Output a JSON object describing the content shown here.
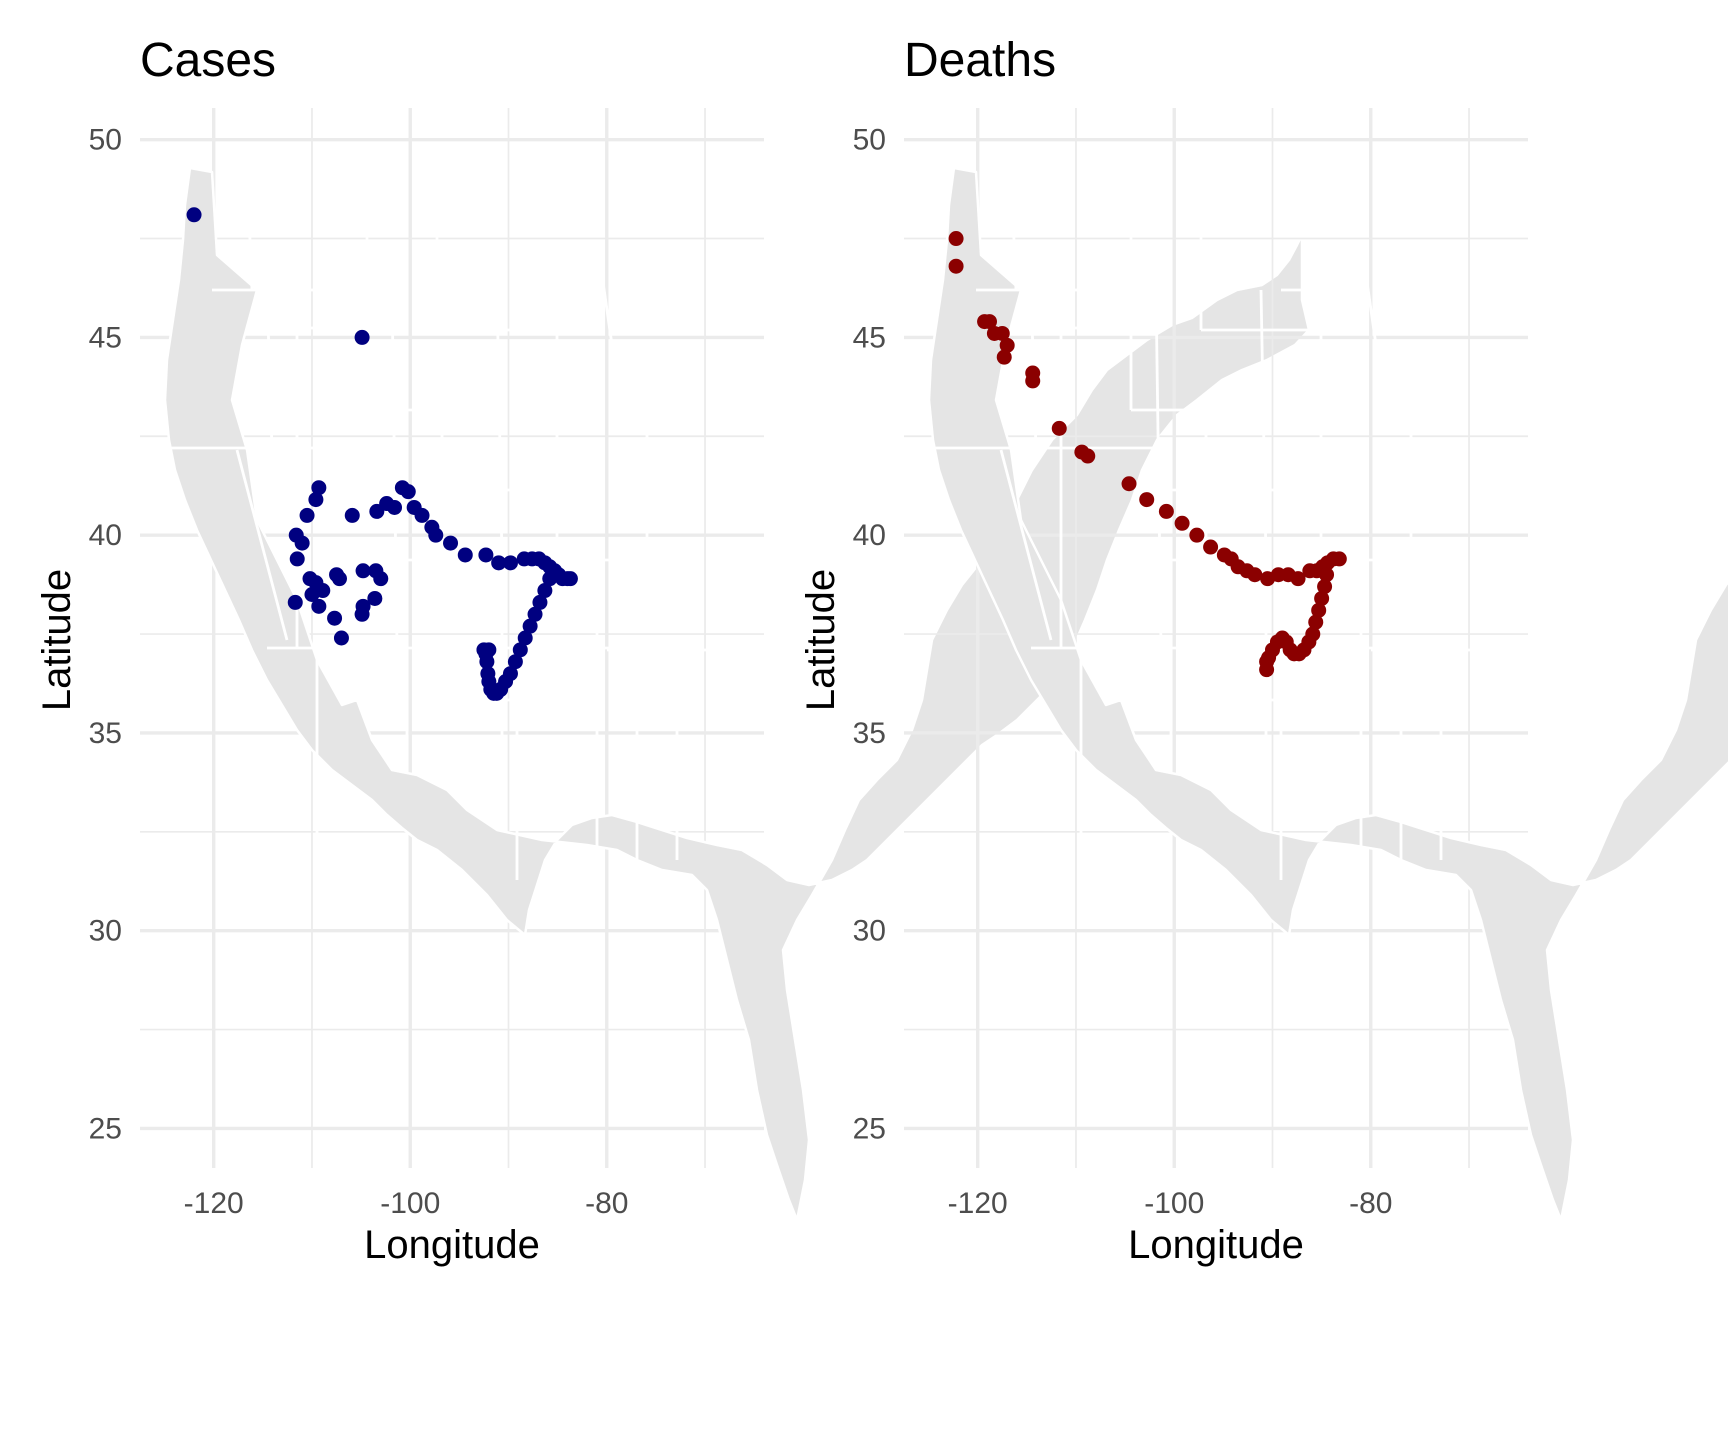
{
  "chart_data": [
    {
      "type": "scatter",
      "title": "Cases",
      "xlabel": "Longitude",
      "ylabel": "Latitude",
      "xlim": [
        -127.5,
        -64
      ],
      "ylim": [
        24,
        50.8
      ],
      "x_ticks": [
        -120,
        -100,
        -80
      ],
      "x_tick_labels": [
        "-120",
        "-100",
        "-80"
      ],
      "y_ticks": [
        25,
        30,
        35,
        40,
        45,
        50
      ],
      "y_tick_labels": [
        "25",
        "30",
        "35",
        "40",
        "45",
        "50"
      ],
      "grid": true,
      "background_map": "contiguous United States state outlines",
      "point_color": "#000080",
      "points": [
        {
          "x": -122.0,
          "y": 48.1
        },
        {
          "x": -104.9,
          "y": 45.0
        },
        {
          "x": -109.3,
          "y": 41.2
        },
        {
          "x": -109.6,
          "y": 40.9
        },
        {
          "x": -110.5,
          "y": 40.5
        },
        {
          "x": -111.6,
          "y": 40.0
        },
        {
          "x": -111.0,
          "y": 39.8
        },
        {
          "x": -111.5,
          "y": 39.4
        },
        {
          "x": -110.2,
          "y": 38.9
        },
        {
          "x": -109.6,
          "y": 38.8
        },
        {
          "x": -108.9,
          "y": 38.6
        },
        {
          "x": -110.0,
          "y": 38.5
        },
        {
          "x": -109.3,
          "y": 38.2
        },
        {
          "x": -111.7,
          "y": 38.3
        },
        {
          "x": -107.5,
          "y": 39.0
        },
        {
          "x": -107.2,
          "y": 38.9
        },
        {
          "x": -107.7,
          "y": 37.9
        },
        {
          "x": -107.0,
          "y": 37.4
        },
        {
          "x": -104.8,
          "y": 39.1
        },
        {
          "x": -104.8,
          "y": 38.2
        },
        {
          "x": -104.9,
          "y": 38.0
        },
        {
          "x": -103.5,
          "y": 39.1
        },
        {
          "x": -103.0,
          "y": 38.9
        },
        {
          "x": -103.6,
          "y": 38.4
        },
        {
          "x": -105.9,
          "y": 40.5
        },
        {
          "x": -103.4,
          "y": 40.6
        },
        {
          "x": -102.4,
          "y": 40.8
        },
        {
          "x": -101.6,
          "y": 40.7
        },
        {
          "x": -100.8,
          "y": 41.2
        },
        {
          "x": -100.2,
          "y": 41.1
        },
        {
          "x": -99.6,
          "y": 40.7
        },
        {
          "x": -98.8,
          "y": 40.5
        },
        {
          "x": -97.8,
          "y": 40.2
        },
        {
          "x": -97.4,
          "y": 40.0
        },
        {
          "x": -95.9,
          "y": 39.8
        },
        {
          "x": -94.4,
          "y": 39.5
        },
        {
          "x": -92.3,
          "y": 39.5
        },
        {
          "x": -91.0,
          "y": 39.3
        },
        {
          "x": -89.8,
          "y": 39.3
        },
        {
          "x": -88.4,
          "y": 39.4
        },
        {
          "x": -87.6,
          "y": 39.4
        },
        {
          "x": -86.9,
          "y": 39.4
        },
        {
          "x": -86.3,
          "y": 39.3
        },
        {
          "x": -85.8,
          "y": 39.2
        },
        {
          "x": -85.3,
          "y": 39.1
        },
        {
          "x": -84.9,
          "y": 39.0
        },
        {
          "x": -84.5,
          "y": 38.9
        },
        {
          "x": -84.0,
          "y": 38.9
        },
        {
          "x": -83.7,
          "y": 38.9
        },
        {
          "x": -85.8,
          "y": 38.9
        },
        {
          "x": -86.3,
          "y": 38.6
        },
        {
          "x": -86.8,
          "y": 38.3
        },
        {
          "x": -87.3,
          "y": 38.0
        },
        {
          "x": -87.8,
          "y": 37.7
        },
        {
          "x": -88.3,
          "y": 37.4
        },
        {
          "x": -88.8,
          "y": 37.1
        },
        {
          "x": -89.3,
          "y": 36.8
        },
        {
          "x": -89.8,
          "y": 36.5
        },
        {
          "x": -90.3,
          "y": 36.3
        },
        {
          "x": -90.8,
          "y": 36.1
        },
        {
          "x": -91.2,
          "y": 36.0
        },
        {
          "x": -91.5,
          "y": 36.0
        },
        {
          "x": -91.8,
          "y": 36.1
        },
        {
          "x": -92.0,
          "y": 36.3
        },
        {
          "x": -92.1,
          "y": 36.5
        },
        {
          "x": -92.2,
          "y": 36.8
        },
        {
          "x": -92.3,
          "y": 37.0
        },
        {
          "x": -92.5,
          "y": 37.1
        },
        {
          "x": -92.0,
          "y": 37.1
        }
      ]
    },
    {
      "type": "scatter",
      "title": "Deaths",
      "xlabel": "Longitude",
      "ylabel": "Latitude",
      "xlim": [
        -127.5,
        -64
      ],
      "ylim": [
        24,
        50.8
      ],
      "x_ticks": [
        -120,
        -100,
        -80
      ],
      "x_tick_labels": [
        "-120",
        "-100",
        "-80"
      ],
      "y_ticks": [
        25,
        30,
        35,
        40,
        45,
        50
      ],
      "y_tick_labels": [
        "25",
        "30",
        "35",
        "40",
        "45",
        "50"
      ],
      "grid": true,
      "background_map": "contiguous United States state outlines",
      "point_color": "#8b0000",
      "points": [
        {
          "x": -122.2,
          "y": 47.5
        },
        {
          "x": -122.2,
          "y": 46.8
        },
        {
          "x": -119.3,
          "y": 45.4
        },
        {
          "x": -118.8,
          "y": 45.4
        },
        {
          "x": -118.3,
          "y": 45.1
        },
        {
          "x": -117.5,
          "y": 45.1
        },
        {
          "x": -117.0,
          "y": 44.8
        },
        {
          "x": -117.3,
          "y": 44.5
        },
        {
          "x": -114.4,
          "y": 44.1
        },
        {
          "x": -114.4,
          "y": 43.9
        },
        {
          "x": -111.7,
          "y": 42.7
        },
        {
          "x": -109.4,
          "y": 42.1
        },
        {
          "x": -108.8,
          "y": 42.0
        },
        {
          "x": -104.6,
          "y": 41.3
        },
        {
          "x": -102.8,
          "y": 40.9
        },
        {
          "x": -100.8,
          "y": 40.6
        },
        {
          "x": -99.2,
          "y": 40.3
        },
        {
          "x": -97.7,
          "y": 40.0
        },
        {
          "x": -96.3,
          "y": 39.7
        },
        {
          "x": -94.9,
          "y": 39.5
        },
        {
          "x": -94.2,
          "y": 39.4
        },
        {
          "x": -93.5,
          "y": 39.2
        },
        {
          "x": -92.6,
          "y": 39.1
        },
        {
          "x": -91.8,
          "y": 39.0
        },
        {
          "x": -90.5,
          "y": 38.9
        },
        {
          "x": -89.4,
          "y": 39.0
        },
        {
          "x": -88.4,
          "y": 39.0
        },
        {
          "x": -87.4,
          "y": 38.9
        },
        {
          "x": -86.2,
          "y": 39.1
        },
        {
          "x": -85.5,
          "y": 39.1
        },
        {
          "x": -84.9,
          "y": 39.2
        },
        {
          "x": -84.4,
          "y": 39.3
        },
        {
          "x": -83.8,
          "y": 39.4
        },
        {
          "x": -83.2,
          "y": 39.4
        },
        {
          "x": -84.5,
          "y": 39.0
        },
        {
          "x": -84.7,
          "y": 38.7
        },
        {
          "x": -85.0,
          "y": 38.4
        },
        {
          "x": -85.3,
          "y": 38.1
        },
        {
          "x": -85.6,
          "y": 37.8
        },
        {
          "x": -85.9,
          "y": 37.5
        },
        {
          "x": -86.3,
          "y": 37.3
        },
        {
          "x": -86.8,
          "y": 37.1
        },
        {
          "x": -87.3,
          "y": 37.0
        },
        {
          "x": -87.8,
          "y": 37.0
        },
        {
          "x": -88.2,
          "y": 37.1
        },
        {
          "x": -88.6,
          "y": 37.3
        },
        {
          "x": -89.0,
          "y": 37.4
        },
        {
          "x": -89.5,
          "y": 37.3
        },
        {
          "x": -90.0,
          "y": 37.1
        },
        {
          "x": -90.4,
          "y": 36.9
        },
        {
          "x": -90.6,
          "y": 36.8
        },
        {
          "x": -90.6,
          "y": 36.6
        }
      ]
    }
  ]
}
